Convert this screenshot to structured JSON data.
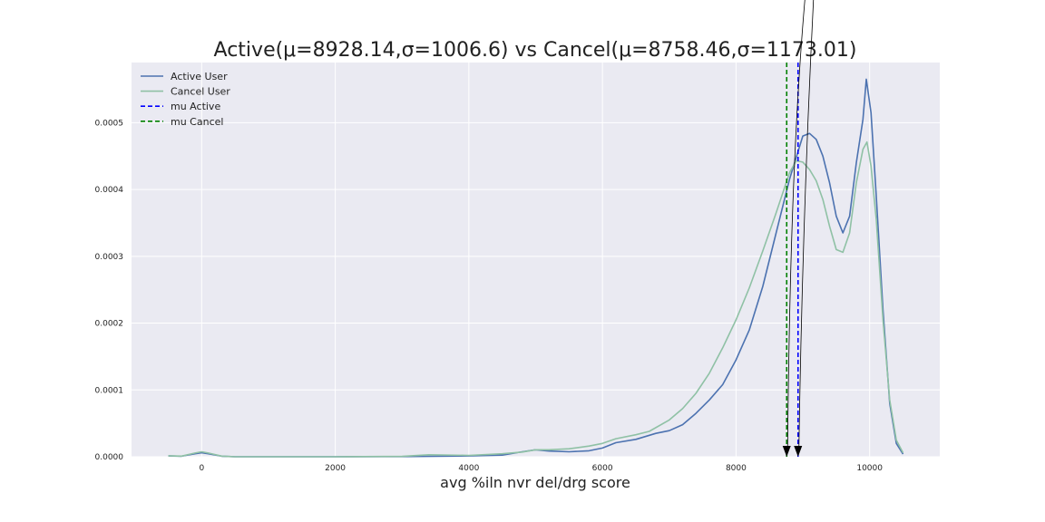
{
  "chart_data": {
    "type": "line",
    "title": "Active(μ=8928.14,σ=1006.6) vs Cancel(μ=8758.46,σ=1173.01)",
    "xlabel": "avg %iln nvr del/drg score",
    "ylabel": "",
    "xlim": [
      -1050,
      11050
    ],
    "ylim": [
      0,
      0.00059
    ],
    "xticks": [
      0,
      2000,
      4000,
      6000,
      8000,
      10000
    ],
    "xtick_labels": [
      "0",
      "2000",
      "4000",
      "6000",
      "8000",
      "10000"
    ],
    "yticks": [
      0,
      0.0001,
      0.0002,
      0.0003,
      0.0004,
      0.0005
    ],
    "ytick_labels": [
      "0.0000",
      "0.0001",
      "0.0002",
      "0.0003",
      "0.0004",
      "0.0005"
    ],
    "grid": true,
    "legend_position": "top-left",
    "background": "#eaeaf2",
    "series": [
      {
        "name": "Active User",
        "color": "#4c72b0",
        "points": [
          [
            -500,
            1.2e-06
          ],
          [
            -300,
            8e-07
          ],
          [
            -100,
            4.5e-06
          ],
          [
            0,
            6e-06
          ],
          [
            100,
            4.5e-06
          ],
          [
            300,
            8e-07
          ],
          [
            500,
            0
          ],
          [
            1000,
            0
          ],
          [
            2000,
            0
          ],
          [
            3000,
            3e-07
          ],
          [
            4000,
            1.2e-06
          ],
          [
            4500,
            2.5e-06
          ],
          [
            4800,
            7.5e-06
          ],
          [
            5000,
            1.05e-05
          ],
          [
            5200,
            8.5e-06
          ],
          [
            5500,
            7.5e-06
          ],
          [
            5800,
            9e-06
          ],
          [
            6000,
            1.3e-05
          ],
          [
            6200,
            2.1e-05
          ],
          [
            6500,
            2.6e-05
          ],
          [
            6800,
            3.5e-05
          ],
          [
            7000,
            3.9e-05
          ],
          [
            7200,
            4.8e-05
          ],
          [
            7400,
            6.5e-05
          ],
          [
            7600,
            8.5e-05
          ],
          [
            7800,
            0.000108
          ],
          [
            8000,
            0.000145
          ],
          [
            8200,
            0.00019
          ],
          [
            8400,
            0.000255
          ],
          [
            8600,
            0.000335
          ],
          [
            8800,
            0.000415
          ],
          [
            9000,
            0.00048
          ],
          [
            9100,
            0.000484
          ],
          [
            9200,
            0.000475
          ],
          [
            9300,
            0.00045
          ],
          [
            9400,
            0.00041
          ],
          [
            9500,
            0.00036
          ],
          [
            9600,
            0.000335
          ],
          [
            9700,
            0.00036
          ],
          [
            9800,
            0.00044
          ],
          [
            9900,
            0.000505
          ],
          [
            9950,
            0.000565
          ],
          [
            10020,
            0.000515
          ],
          [
            10100,
            0.00039
          ],
          [
            10200,
            0.00022
          ],
          [
            10300,
            8e-05
          ],
          [
            10400,
            2e-05
          ],
          [
            10500,
            4e-06
          ]
        ]
      },
      {
        "name": "Cancel User",
        "color": "#8fc1a5",
        "points": [
          [
            -500,
            1.5e-06
          ],
          [
            -300,
            1e-06
          ],
          [
            -100,
            5.5e-06
          ],
          [
            0,
            7.5e-06
          ],
          [
            100,
            5.5e-06
          ],
          [
            300,
            1e-06
          ],
          [
            500,
            0
          ],
          [
            1000,
            0
          ],
          [
            2000,
            0
          ],
          [
            3000,
            5e-07
          ],
          [
            3400,
            3e-06
          ],
          [
            4000,
            2e-06
          ],
          [
            4500,
            4.5e-06
          ],
          [
            4800,
            7e-06
          ],
          [
            5000,
            1.05e-05
          ],
          [
            5200,
            1.05e-05
          ],
          [
            5500,
            1.2e-05
          ],
          [
            5800,
            1.6e-05
          ],
          [
            6000,
            2e-05
          ],
          [
            6200,
            2.7e-05
          ],
          [
            6500,
            3.3e-05
          ],
          [
            6700,
            3.8e-05
          ],
          [
            7000,
            5.5e-05
          ],
          [
            7200,
            7.2e-05
          ],
          [
            7400,
            9.5e-05
          ],
          [
            7600,
            0.000125
          ],
          [
            7800,
            0.000163
          ],
          [
            8000,
            0.000205
          ],
          [
            8200,
            0.000253
          ],
          [
            8400,
            0.000308
          ],
          [
            8600,
            0.000365
          ],
          [
            8800,
            0.000425
          ],
          [
            8900,
            0.000443
          ],
          [
            9000,
            0.000441
          ],
          [
            9100,
            0.00043
          ],
          [
            9200,
            0.000413
          ],
          [
            9300,
            0.000385
          ],
          [
            9400,
            0.000345
          ],
          [
            9500,
            0.00031
          ],
          [
            9600,
            0.000306
          ],
          [
            9700,
            0.000335
          ],
          [
            9800,
            0.00041
          ],
          [
            9900,
            0.00046
          ],
          [
            9960,
            0.000471
          ],
          [
            10020,
            0.000435
          ],
          [
            10100,
            0.000355
          ],
          [
            10200,
            0.000205
          ],
          [
            10300,
            8.5e-05
          ],
          [
            10400,
            2.5e-05
          ],
          [
            10500,
            6e-06
          ]
        ]
      }
    ],
    "vlines": [
      {
        "name": "mu Active",
        "x": 8928.14,
        "color": "#0000ff",
        "style": "dashed"
      },
      {
        "name": "mu Cancel",
        "x": 8758.46,
        "color": "#008000",
        "style": "dashed"
      }
    ]
  }
}
